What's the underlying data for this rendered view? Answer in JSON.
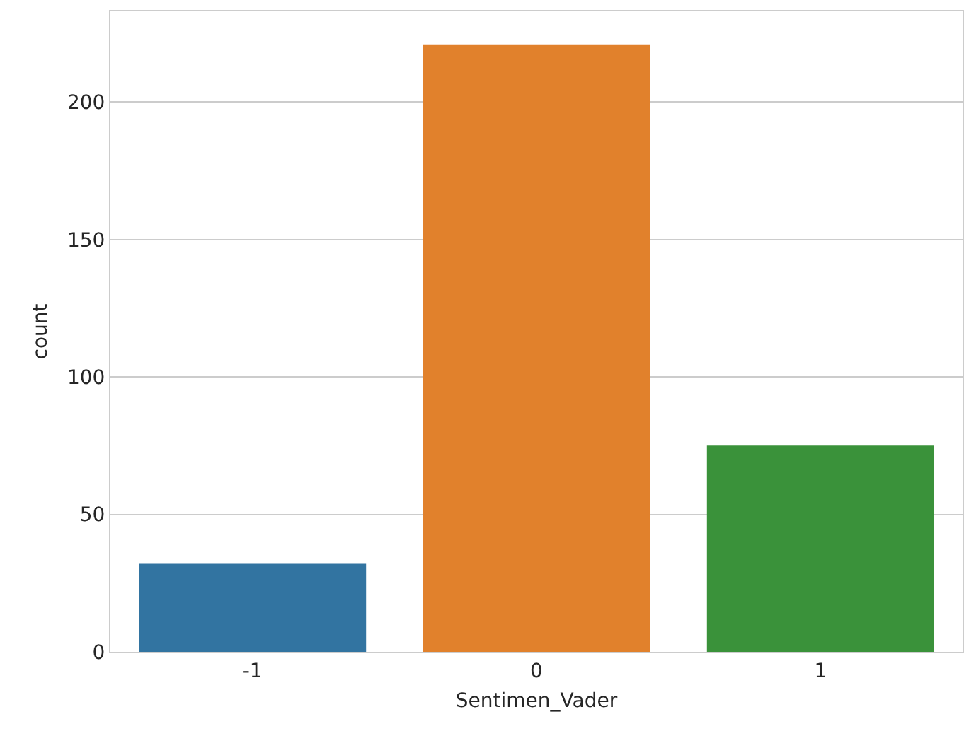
{
  "chart_data": {
    "type": "bar",
    "xlabel": "Sentimen_Vader",
    "ylabel": "count",
    "categories": [
      "-1",
      "0",
      "1"
    ],
    "values": [
      32,
      221,
      75
    ],
    "colors": [
      "#3274a1",
      "#e1812c",
      "#3a923a"
    ],
    "ylim": [
      0,
      233
    ],
    "yticks": [
      0,
      50,
      100,
      150,
      200
    ],
    "grid": "y"
  }
}
